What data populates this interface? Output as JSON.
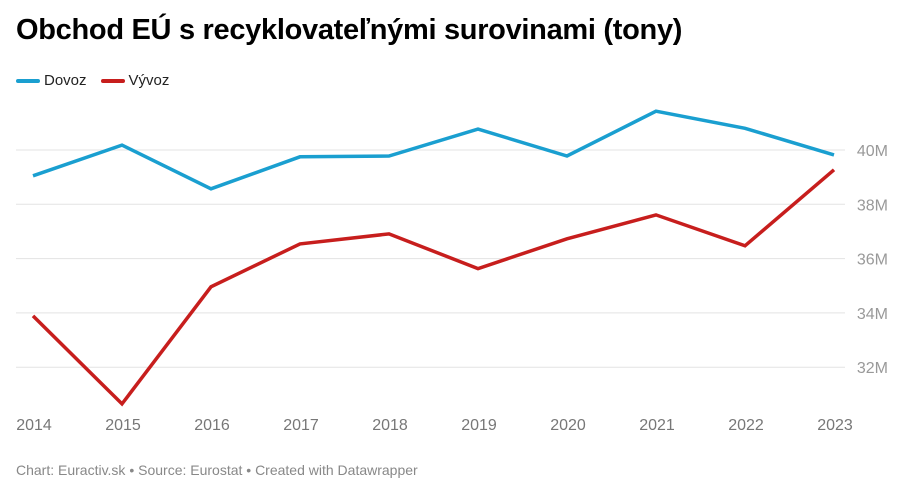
{
  "title": "Obchod EÚ s recyklovateľnými surovinami (tony)",
  "footer": "Chart: Euractiv.sk • Source: Eurostat • Created with Datawrapper",
  "chart_data": {
    "type": "line",
    "title": "Obchod EÚ s recyklovateľnými surovinami (tony)",
    "xlabel": "",
    "ylabel": "",
    "x": [
      "2014",
      "2015",
      "2016",
      "2017",
      "2018",
      "2019",
      "2020",
      "2021",
      "2022",
      "2023"
    ],
    "ylim": [
      30.5,
      42
    ],
    "yticks": [
      32,
      34,
      36,
      38,
      40
    ],
    "ytick_labels": [
      "32M",
      "34M",
      "36M",
      "38M",
      "40M"
    ],
    "grid": true,
    "legend_position": "top-left",
    "series": [
      {
        "name": "Dovoz",
        "color": "#1a9fd0",
        "values": [
          39.05,
          40.18,
          38.57,
          39.75,
          39.78,
          40.77,
          39.78,
          41.43,
          40.8,
          39.82
        ]
      },
      {
        "name": "Vývoz",
        "color": "#c71e1d",
        "values": [
          33.89,
          30.65,
          34.96,
          36.54,
          36.91,
          35.63,
          36.73,
          37.61,
          36.47,
          39.27
        ]
      }
    ]
  }
}
